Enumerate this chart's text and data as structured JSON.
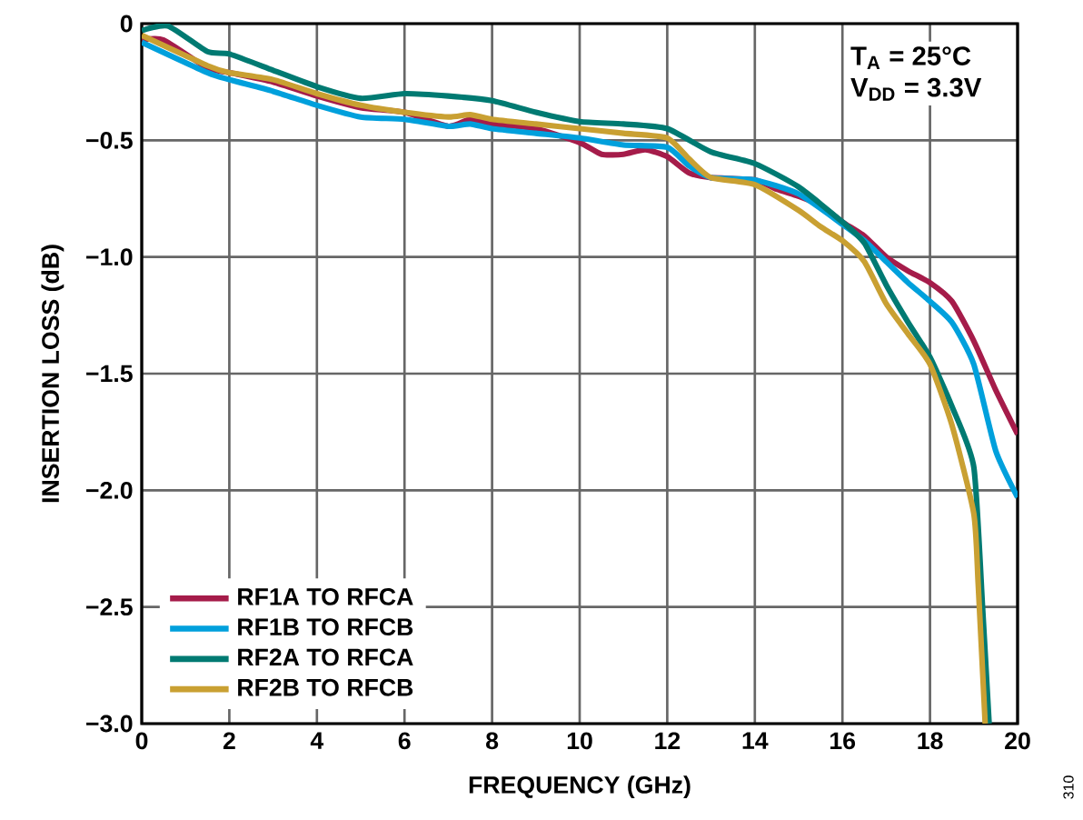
{
  "chart_data": {
    "type": "line",
    "xlabel": "FREQUENCY (GHz)",
    "ylabel": "INSERTION LOSS (dB)",
    "xlim": [
      0,
      20
    ],
    "ylim": [
      -3.0,
      0
    ],
    "xticks": [
      0,
      2,
      4,
      6,
      8,
      10,
      12,
      14,
      16,
      18,
      20
    ],
    "yticks": [
      {
        "value": -3.0,
        "label": "−3.0"
      },
      {
        "value": -2.5,
        "label": "−2.5"
      },
      {
        "value": -2.0,
        "label": "−2.0"
      },
      {
        "value": -1.5,
        "label": "−1.5"
      },
      {
        "value": -1.0,
        "label": "−1.0"
      },
      {
        "value": -0.5,
        "label": "−0.5"
      },
      {
        "value": 0,
        "label": "0"
      }
    ],
    "grid": true,
    "legend": "bottom left",
    "marker": "none",
    "line_style": "solid",
    "annotations": [
      "T$_{A}$ = 25°C",
      "V$_{DD}$ = 3.3V",
      "310"
    ],
    "series": [
      {
        "name": "RF1A TO RFCA",
        "color": "#a51c4a",
        "x": [
          0,
          0.5,
          1.5,
          2,
          3,
          4,
          5,
          6,
          7,
          7.5,
          8,
          9,
          10,
          10.5,
          11,
          11.5,
          12,
          12.5,
          13,
          14,
          14.5,
          15,
          15.5,
          16,
          16.5,
          17,
          17.5,
          18,
          18.5,
          19,
          19.5,
          20
        ],
        "values": [
          -0.07,
          -0.07,
          -0.19,
          -0.21,
          -0.25,
          -0.31,
          -0.36,
          -0.38,
          -0.44,
          -0.41,
          -0.43,
          -0.45,
          -0.51,
          -0.56,
          -0.56,
          -0.54,
          -0.57,
          -0.64,
          -0.66,
          -0.67,
          -0.71,
          -0.74,
          -0.78,
          -0.85,
          -0.91,
          -1.0,
          -1.06,
          -1.11,
          -1.19,
          -1.36,
          -1.57,
          -1.76
        ]
      },
      {
        "name": "RF1B TO RFCB",
        "color": "#00a0dc",
        "x": [
          0,
          1.5,
          2,
          3,
          4,
          5,
          6,
          7,
          7.5,
          8,
          9,
          10,
          11,
          12,
          12.5,
          13,
          14,
          15,
          16,
          16.5,
          17,
          17.5,
          18,
          18.5,
          19,
          19.5,
          20
        ],
        "values": [
          -0.08,
          -0.21,
          -0.24,
          -0.29,
          -0.35,
          -0.4,
          -0.41,
          -0.44,
          -0.43,
          -0.45,
          -0.47,
          -0.49,
          -0.52,
          -0.53,
          -0.61,
          -0.66,
          -0.67,
          -0.73,
          -0.86,
          -0.93,
          -1.02,
          -1.11,
          -1.19,
          -1.28,
          -1.46,
          -1.83,
          -2.03
        ]
      },
      {
        "name": "RF2A TO RFCA",
        "color": "#007a72",
        "x": [
          0,
          0.6,
          1.5,
          2,
          3,
          4,
          5,
          6,
          7,
          8,
          9,
          10,
          11,
          12,
          13,
          14,
          15,
          16,
          16.5,
          17,
          17.5,
          18,
          18.5,
          19,
          19.2,
          19.35
        ],
        "values": [
          -0.03,
          -0.01,
          -0.12,
          -0.13,
          -0.2,
          -0.27,
          -0.32,
          -0.3,
          -0.31,
          -0.33,
          -0.38,
          -0.42,
          -0.43,
          -0.45,
          -0.55,
          -0.6,
          -0.7,
          -0.85,
          -0.94,
          -1.12,
          -1.28,
          -1.43,
          -1.64,
          -1.9,
          -2.5,
          -3.0
        ]
      },
      {
        "name": "RF2B TO RFCB",
        "color": "#c9a032",
        "x": [
          0,
          1.5,
          2,
          3,
          4,
          5,
          6,
          7,
          7.5,
          8,
          9,
          10,
          11,
          12,
          12.5,
          13,
          14,
          15,
          15.5,
          16,
          16.5,
          17,
          17.5,
          18,
          18.5,
          19,
          19.1,
          19.26
        ],
        "values": [
          -0.05,
          -0.18,
          -0.21,
          -0.24,
          -0.3,
          -0.35,
          -0.38,
          -0.4,
          -0.39,
          -0.41,
          -0.43,
          -0.45,
          -0.47,
          -0.49,
          -0.58,
          -0.66,
          -0.69,
          -0.8,
          -0.87,
          -0.93,
          -1.02,
          -1.2,
          -1.33,
          -1.46,
          -1.72,
          -2.1,
          -2.4,
          -3.0
        ]
      }
    ]
  }
}
